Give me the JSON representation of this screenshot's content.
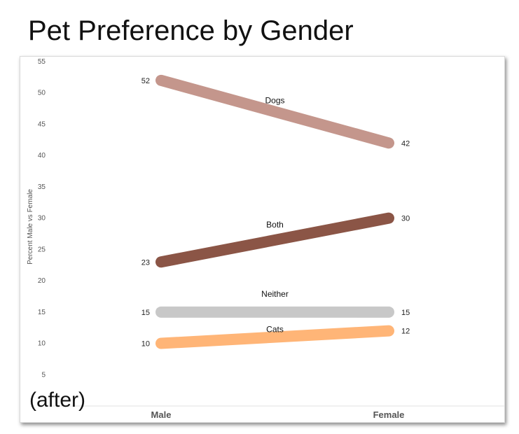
{
  "page": {
    "title": "Pet Preference by Gender",
    "note": "(after)"
  },
  "chart_data": {
    "type": "line",
    "title": "Pet Preference by Gender",
    "xlabel": "",
    "ylabel": "Percent Male vs Female",
    "categories": [
      "Male",
      "Female"
    ],
    "ylim": [
      0,
      55
    ],
    "yticks": [
      5,
      10,
      15,
      20,
      25,
      30,
      35,
      40,
      45,
      50,
      55
    ],
    "grid": false,
    "legend": "none",
    "series": [
      {
        "name": "Dogs",
        "values": [
          52,
          42
        ],
        "color": "#c4968c"
      },
      {
        "name": "Both",
        "values": [
          23,
          30
        ],
        "color": "#8b5546"
      },
      {
        "name": "Neither",
        "values": [
          15,
          15
        ],
        "color": "#c8c8c8"
      },
      {
        "name": "Cats",
        "values": [
          10,
          12
        ],
        "color": "#ffb577"
      }
    ]
  }
}
